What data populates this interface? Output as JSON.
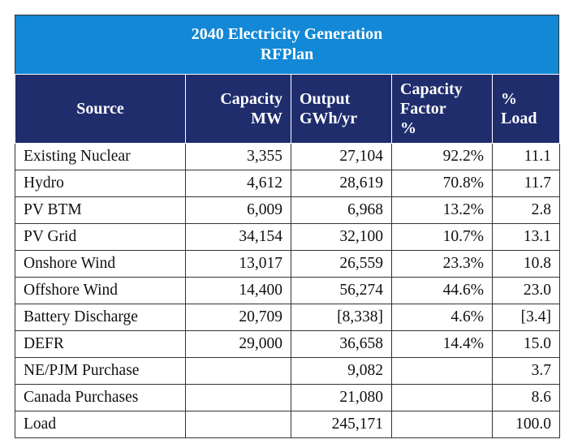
{
  "title": "2040 Electricity Generation",
  "subtitle": "RFPlan",
  "columns": [
    [
      "Source"
    ],
    [
      "Capacity",
      "MW"
    ],
    [
      "Output",
      "GWh/yr"
    ],
    [
      "Capacity",
      "Factor",
      "%"
    ],
    [
      "%",
      "Load"
    ]
  ],
  "rows": [
    [
      "Existing Nuclear",
      "3,355",
      "27,104",
      "92.2%",
      "11.1"
    ],
    [
      "Hydro",
      "4,612",
      "28,619",
      "70.8%",
      "11.7"
    ],
    [
      "PV BTM",
      "6,009",
      "6,968",
      "13.2%",
      "2.8"
    ],
    [
      "PV Grid",
      "34,154",
      "32,100",
      "10.7%",
      "13.1"
    ],
    [
      "Onshore Wind",
      "13,017",
      "26,559",
      "23.3%",
      "10.8"
    ],
    [
      "Offshore Wind",
      "14,400",
      "56,274",
      "44.6%",
      "23.0"
    ],
    [
      "Battery Discharge",
      "20,709",
      "[8,338]",
      "4.6%",
      "[3.4]"
    ],
    [
      "DEFR",
      "29,000",
      "36,658",
      "14.4%",
      "15.0"
    ],
    [
      "NE/PJM Purchase",
      null,
      "9,082",
      null,
      "3.7"
    ],
    [
      "Canada Purchases",
      null,
      "21,080",
      null,
      "8.6"
    ],
    [
      "Load",
      null,
      "245,171",
      null,
      "100.0"
    ]
  ]
}
